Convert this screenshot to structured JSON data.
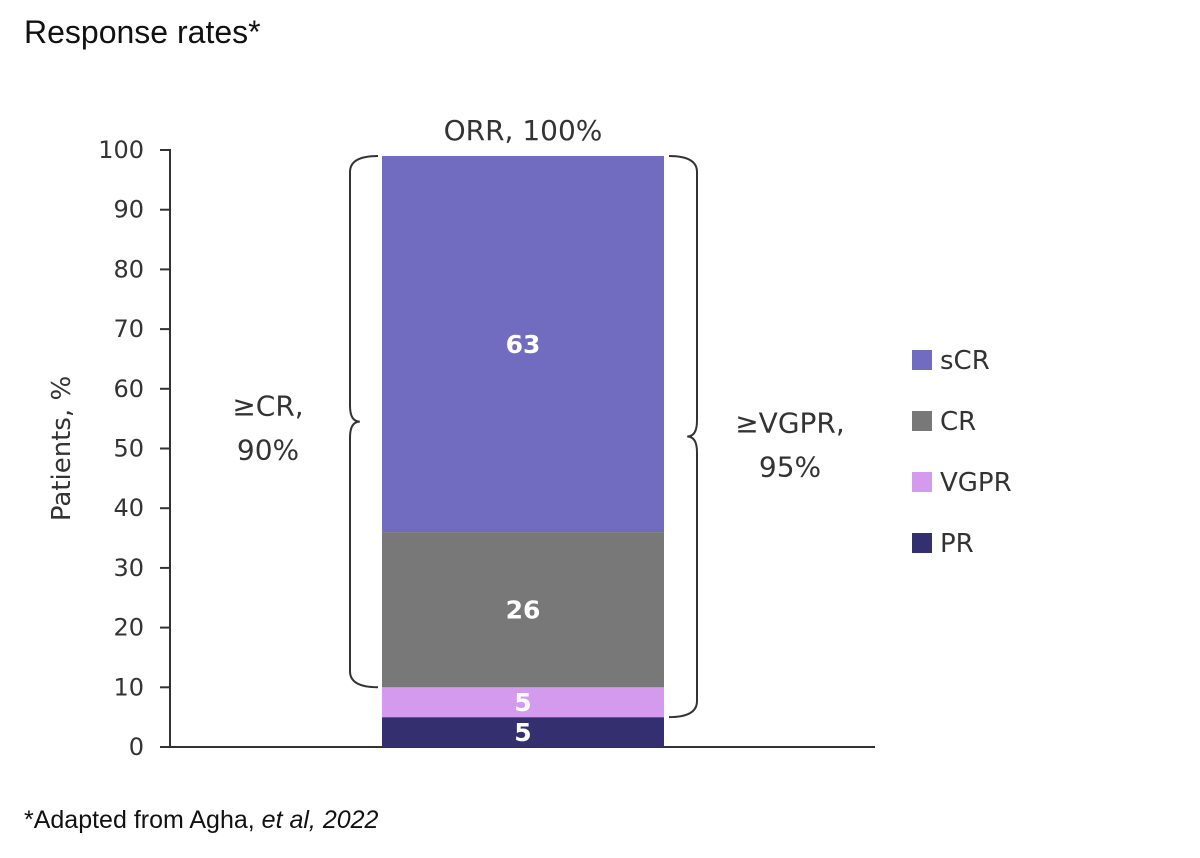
{
  "title": "Response rates*",
  "footnote": {
    "prefix": "*Adapted from Agha, ",
    "italic": "et al, 2022"
  },
  "chart_data": {
    "type": "bar",
    "stacked": true,
    "ylabel": "Patients, %",
    "ylim": [
      0,
      100
    ],
    "yticks": [
      0,
      10,
      20,
      30,
      40,
      50,
      60,
      70,
      80,
      90,
      100
    ],
    "series": [
      {
        "name": "PR",
        "value": 5,
        "color": "#34306f"
      },
      {
        "name": "VGPR",
        "value": 5,
        "color": "#d49aee"
      },
      {
        "name": "CR",
        "value": 26,
        "color": "#787878"
      },
      {
        "name": "sCR",
        "value": 63,
        "color": "#726cc0"
      }
    ],
    "legend": {
      "position": "right",
      "order": [
        "sCR",
        "CR",
        "VGPR",
        "PR"
      ]
    },
    "annotations": {
      "top": "ORR, 100%",
      "left_line1": "≥CR,",
      "left_line2": "90%",
      "right_line1": "≥VGPR,",
      "right_line2": "95%"
    }
  }
}
